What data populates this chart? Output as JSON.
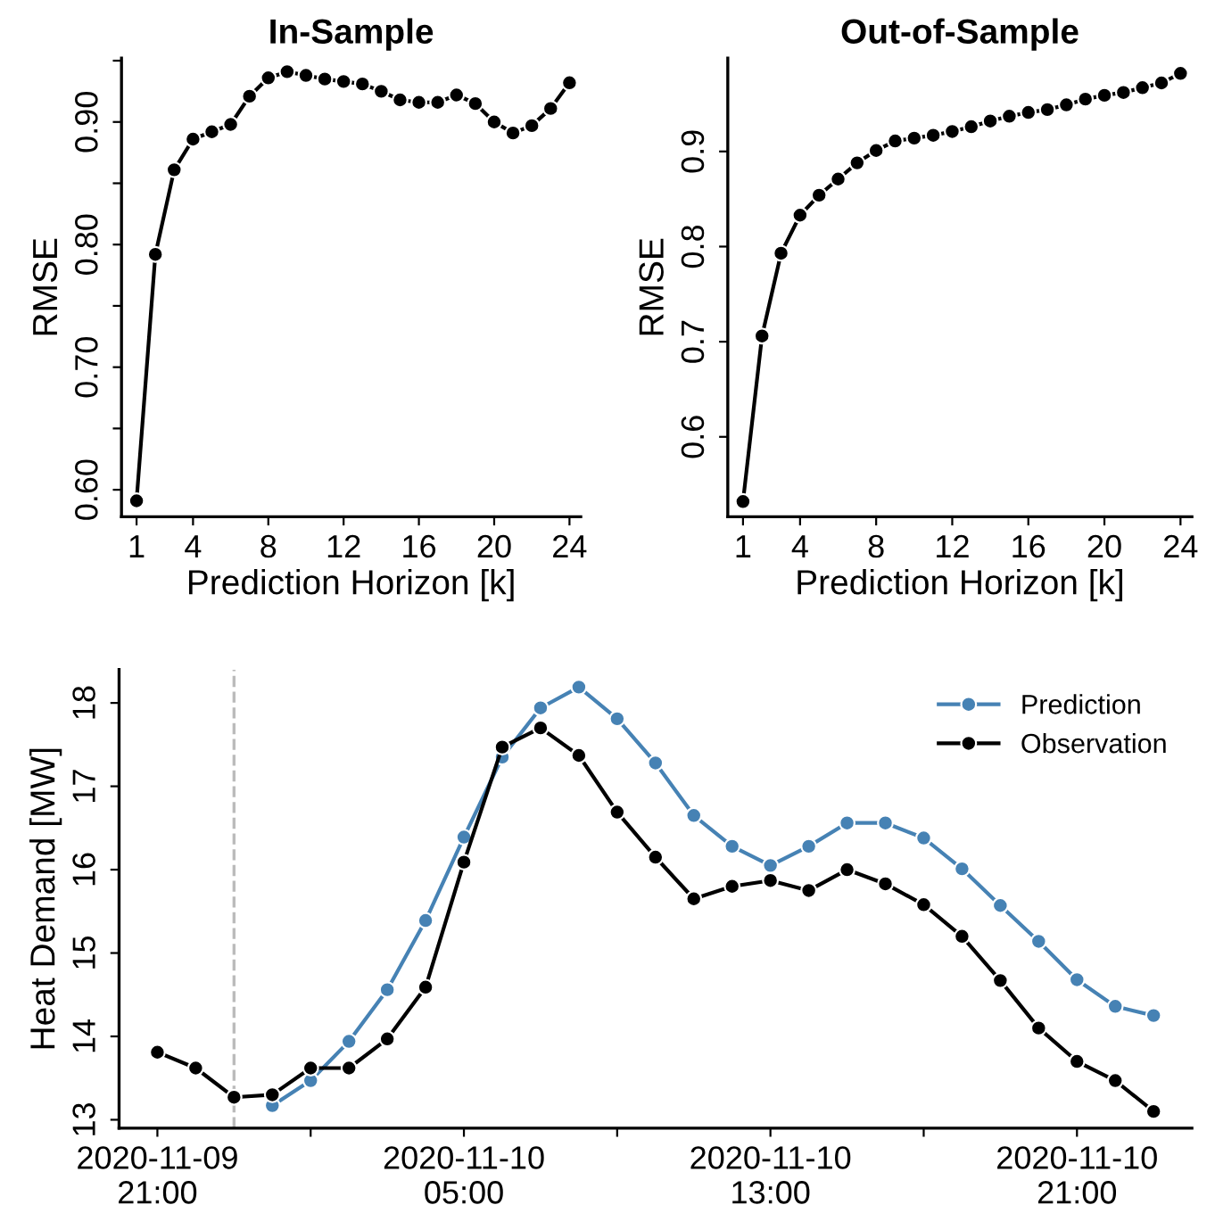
{
  "chart_data": [
    {
      "type": "line",
      "title": "In-Sample",
      "xlabel": "Prediction Horizon [k]",
      "ylabel": "RMSE",
      "marker": "circle",
      "line_style": "solid",
      "grid": false,
      "legend": false,
      "x": [
        1,
        2,
        3,
        4,
        5,
        6,
        7,
        8,
        9,
        10,
        11,
        12,
        13,
        14,
        15,
        16,
        17,
        18,
        19,
        20,
        21,
        22,
        23,
        24
      ],
      "series": [
        {
          "color": "#000000",
          "values": [
            0.591,
            0.792,
            0.861,
            0.886,
            0.892,
            0.898,
            0.921,
            0.936,
            0.941,
            0.938,
            0.935,
            0.933,
            0.931,
            0.925,
            0.918,
            0.916,
            0.916,
            0.922,
            0.915,
            0.9,
            0.891,
            0.897,
            0.911,
            0.932
          ]
        }
      ],
      "xlim": [
        0.2,
        24.6
      ],
      "xticks": [
        1,
        4,
        8,
        12,
        16,
        20,
        24
      ],
      "ylim": [
        0.578,
        0.952
      ],
      "yticks": [
        {
          "value": 0.6,
          "label": "0.60"
        },
        {
          "value": 0.65,
          "label": null
        },
        {
          "value": 0.7,
          "label": "0.70"
        },
        {
          "value": 0.75,
          "label": null
        },
        {
          "value": 0.8,
          "label": "0.80"
        },
        {
          "value": 0.85,
          "label": null
        },
        {
          "value": 0.9,
          "label": "0.90"
        },
        {
          "value": 0.95,
          "label": null
        }
      ]
    },
    {
      "type": "line",
      "title": "Out-of-Sample",
      "xlabel": "Prediction Horizon [k]",
      "ylabel": "RMSE",
      "marker": "circle",
      "line_style": "solid",
      "grid": false,
      "legend": false,
      "x": [
        1,
        2,
        3,
        4,
        5,
        6,
        7,
        8,
        9,
        10,
        11,
        12,
        13,
        14,
        15,
        16,
        17,
        18,
        19,
        20,
        21,
        22,
        23,
        24
      ],
      "series": [
        {
          "color": "#000000",
          "values": [
            0.532,
            0.706,
            0.793,
            0.833,
            0.854,
            0.871,
            0.888,
            0.901,
            0.911,
            0.914,
            0.917,
            0.921,
            0.926,
            0.932,
            0.937,
            0.941,
            0.944,
            0.949,
            0.955,
            0.959,
            0.962,
            0.967,
            0.972,
            0.982
          ]
        }
      ],
      "xlim": [
        0.2,
        24.6
      ],
      "xticks": [
        1,
        4,
        8,
        12,
        16,
        20,
        24
      ],
      "ylim": [
        0.516,
        0.998
      ],
      "yticks": [
        0.6,
        0.7,
        0.8,
        0.9
      ]
    },
    {
      "type": "line",
      "ylabel": "Heat Demand [MW]",
      "marker": "circle",
      "line_style": "solid",
      "grid": false,
      "legend": "top right",
      "series": [
        {
          "name": "Prediction",
          "color": "#4682b4",
          "x": [
            "2020-11-10T00:00",
            "2020-11-10T01:00",
            "2020-11-10T02:00",
            "2020-11-10T03:00",
            "2020-11-10T04:00",
            "2020-11-10T05:00",
            "2020-11-10T06:00",
            "2020-11-10T07:00",
            "2020-11-10T08:00",
            "2020-11-10T09:00",
            "2020-11-10T10:00",
            "2020-11-10T11:00",
            "2020-11-10T12:00",
            "2020-11-10T13:00",
            "2020-11-10T14:00",
            "2020-11-10T15:00",
            "2020-11-10T16:00",
            "2020-11-10T17:00",
            "2020-11-10T18:00",
            "2020-11-10T19:00",
            "2020-11-10T20:00",
            "2020-11-10T21:00",
            "2020-11-10T22:00",
            "2020-11-10T23:00"
          ],
          "values": [
            13.17,
            13.47,
            13.94,
            14.56,
            15.39,
            16.39,
            17.35,
            17.94,
            18.19,
            17.81,
            17.28,
            16.65,
            16.28,
            16.05,
            16.28,
            16.56,
            16.56,
            16.38,
            16.01,
            15.57,
            15.14,
            14.68,
            14.36,
            14.25
          ]
        },
        {
          "name": "Observation",
          "color": "#000000",
          "x": [
            "2020-11-09T21:00",
            "2020-11-09T22:00",
            "2020-11-09T23:00",
            "2020-11-10T00:00",
            "2020-11-10T01:00",
            "2020-11-10T02:00",
            "2020-11-10T03:00",
            "2020-11-10T04:00",
            "2020-11-10T05:00",
            "2020-11-10T06:00",
            "2020-11-10T07:00",
            "2020-11-10T08:00",
            "2020-11-10T09:00",
            "2020-11-10T10:00",
            "2020-11-10T11:00",
            "2020-11-10T12:00",
            "2020-11-10T13:00",
            "2020-11-10T14:00",
            "2020-11-10T15:00",
            "2020-11-10T16:00",
            "2020-11-10T17:00",
            "2020-11-10T18:00",
            "2020-11-10T19:00",
            "2020-11-10T20:00",
            "2020-11-10T21:00",
            "2020-11-10T22:00",
            "2020-11-10T23:00"
          ],
          "values": [
            13.81,
            13.62,
            13.27,
            13.3,
            13.62,
            13.62,
            13.97,
            14.59,
            16.09,
            17.47,
            17.7,
            17.37,
            16.69,
            16.15,
            15.65,
            15.8,
            15.87,
            15.75,
            16.0,
            15.83,
            15.58,
            15.2,
            14.67,
            14.1,
            13.7,
            13.47,
            13.1
          ]
        }
      ],
      "xlim": [
        "2020-11-09T20:00",
        "2020-11-11T00:00"
      ],
      "xticks": [
        {
          "value": "2020-11-09T21:00",
          "label": "2020-11-09\n21:00"
        },
        {
          "value": "2020-11-10T01:00",
          "label": null
        },
        {
          "value": "2020-11-10T05:00",
          "label": "2020-11-10\n05:00"
        },
        {
          "value": "2020-11-10T09:00",
          "label": null
        },
        {
          "value": "2020-11-10T13:00",
          "label": "2020-11-10\n13:00"
        },
        {
          "value": "2020-11-10T17:00",
          "label": null
        },
        {
          "value": "2020-11-10T21:00",
          "label": "2020-11-10\n21:00"
        }
      ],
      "ylim": [
        12.9,
        18.4
      ],
      "yticks": [
        13,
        14,
        15,
        16,
        17,
        18
      ],
      "ref_lines": [
        {
          "axis": "x",
          "value": "2020-11-09T23:00",
          "color": "#bbbbbb",
          "line_style": "dashed"
        }
      ]
    }
  ]
}
